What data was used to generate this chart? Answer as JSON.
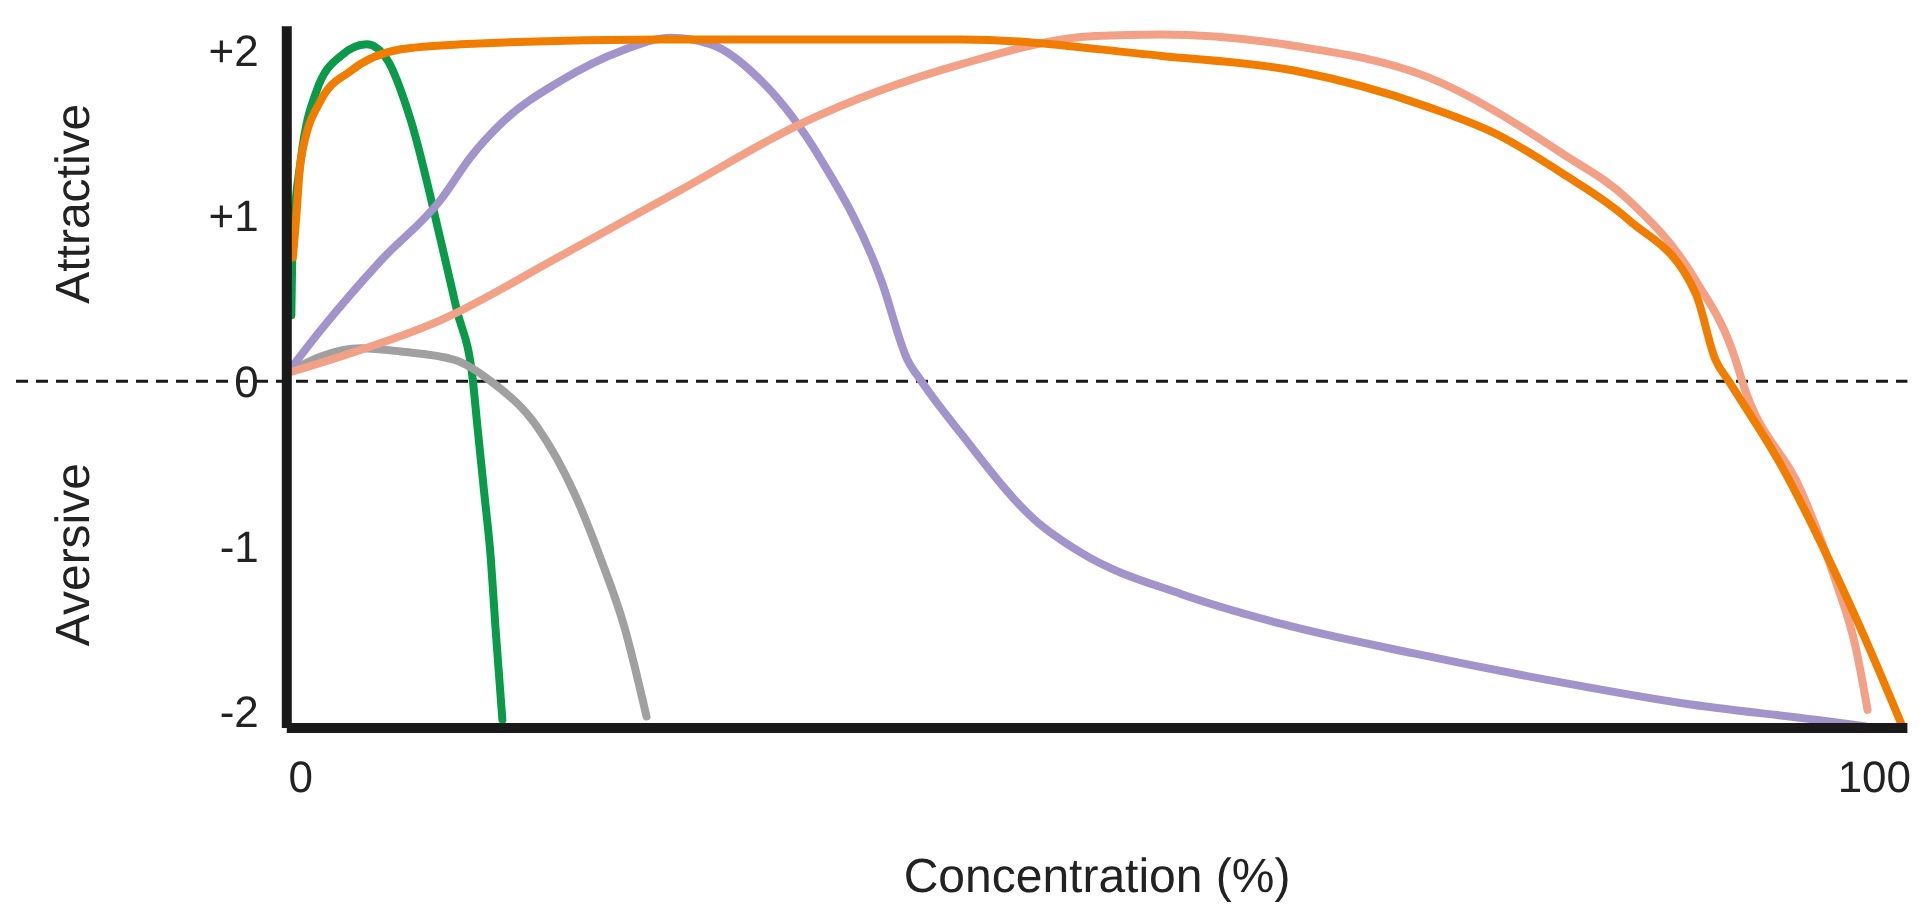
{
  "chart_data": {
    "type": "line",
    "xlabel": "Concentration (%)",
    "annotations": [
      "Attractive",
      "Aversive"
    ],
    "xlim": [
      -0.89,
      102.1
    ],
    "ylim": [
      -2.1,
      2.15
    ],
    "xticks": [
      0,
      100
    ],
    "yticks": [
      {
        "value": 2,
        "label": "+2"
      },
      {
        "value": 1,
        "label": "+1"
      },
      0,
      -1,
      -2
    ],
    "grid": false,
    "marker": "none",
    "line_style": "solid",
    "ref_lines": [
      {
        "axis": "y",
        "value": 0,
        "label": null,
        "color": "#1a1a1a",
        "line_style": "dashed"
      }
    ],
    "series": [
      {
        "color": "#0a9a4a",
        "x": [
          -0.6,
          -0.51,
          0,
          1.01,
          2.54,
          4.19,
          5.47,
          6.99,
          8.9,
          9.92,
          10.94,
          11.23,
          11.66,
          12.08,
          12.37,
          12.81
        ],
        "values": [
          0.4,
          0.85,
          1.34,
          1.76,
          1.97,
          2.04,
          1.95,
          1.58,
          0.85,
          0.43,
          0,
          -0.28,
          -0.68,
          -1.08,
          -1.49,
          -2.05
        ]
      },
      {
        "color": "#a0a0a0",
        "x": [
          -0.85,
          1.27,
          3.81,
          6.35,
          9.75,
          12.08,
          15.05,
          17.39,
          19.08,
          20.57,
          21.97
        ],
        "values": [
          0.05,
          0.15,
          0.2,
          0.18,
          0.13,
          0,
          -0.28,
          -0.68,
          -1.08,
          -1.49,
          -2.03
        ]
      },
      {
        "color": "#a393cb",
        "x": [
          -0.85,
          1.27,
          5.08,
          8.9,
          10.81,
          12.72,
          16.53,
          20.35,
          23.53,
          26.08,
          29.25,
          33.07,
          36.89,
          38.55,
          39.44,
          41.98,
          46.65,
          49.61,
          55.98,
          62.34,
          70.82,
          79.3,
          87.78,
          96.27,
          99.45
        ],
        "values": [
          0.05,
          0.31,
          0.73,
          1.1,
          1.36,
          1.56,
          1.82,
          2,
          2.08,
          2.04,
          1.82,
          1.34,
          0.61,
          0.13,
          0,
          -0.32,
          -0.84,
          -1.04,
          -1.29,
          -1.47,
          -1.65,
          -1.81,
          -1.95,
          -2.05,
          -2.09
        ]
      },
      {
        "color": "#f2a086",
        "x": [
          -0.85,
          2.54,
          8.9,
          16.53,
          24.17,
          31.8,
          41.98,
          50.45,
          54.7,
          63.19,
          71.66,
          80.15,
          84.35,
          88.65,
          91.18,
          91.6,
          95.42,
          97.54,
          98.81,
          99.57
        ],
        "values": [
          0.05,
          0.15,
          0.37,
          0.76,
          1.16,
          1.56,
          1.92,
          2.09,
          2.1,
          2.03,
          1.84,
          1.38,
          1.1,
          0.61,
          0.13,
          0,
          -0.68,
          -1.21,
          -1.61,
          -1.99
        ]
      },
      {
        "color": "#f07d00",
        "x": [
          -0.5,
          -0.3,
          0,
          1.27,
          3.18,
          6.35,
          10.17,
          22.9,
          41.98,
          54.7,
          63.19,
          71.66,
          75.91,
          80.15,
          84.35,
          88.65,
          89.9,
          90.75,
          94.14,
          97.11,
          99.65,
          101.78
        ],
        "values": [
          0.75,
          0.98,
          1.34,
          1.7,
          1.88,
          2.01,
          2.04,
          2.07,
          2.07,
          1.97,
          1.88,
          1.66,
          1.5,
          1.26,
          0.98,
          0.53,
          0.13,
          0,
          -0.52,
          -1.08,
          -1.61,
          -2.09
        ]
      }
    ]
  }
}
